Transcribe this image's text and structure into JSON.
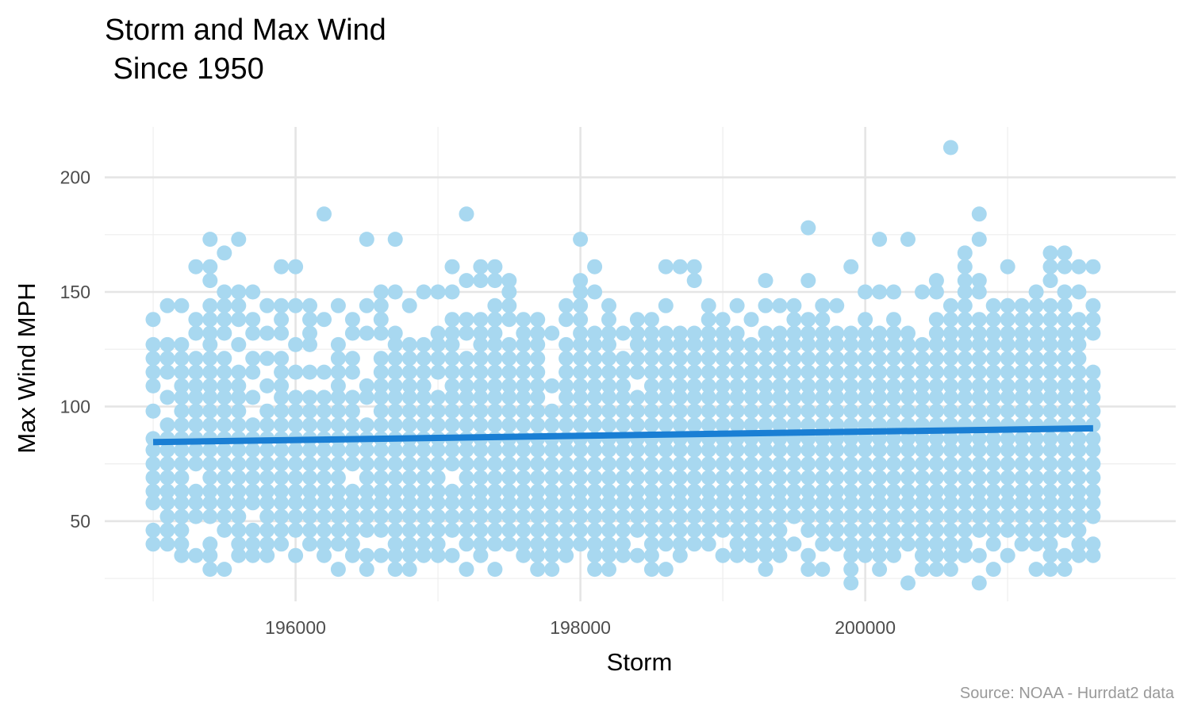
{
  "chart_data": {
    "type": "scatter",
    "title_line1": "Storm and Max Wind",
    "title_line2": " Since 1950",
    "xlabel": "Storm",
    "ylabel": "Max Wind MPH",
    "caption": "Source: NOAA - Hurrdat2 data",
    "xlim": [
      194660,
      202180
    ],
    "ylim": [
      15,
      222
    ],
    "x_ticks": [
      196000,
      198000,
      200000
    ],
    "x_tick_labels": [
      "196000",
      "198000",
      "200000"
    ],
    "x_minor_ticks": [
      195000,
      197000,
      199000,
      201000
    ],
    "y_ticks": [
      50,
      100,
      150,
      200
    ],
    "y_tick_labels": [
      "50",
      "100",
      "150",
      "200"
    ],
    "y_minor_ticks": [
      25,
      75,
      125,
      175
    ],
    "grid": true,
    "point_color": "#a8d8f0",
    "trend_color": "#1a7fd4",
    "trend_line": {
      "x": [
        195000,
        201600
      ],
      "y": [
        84.5,
        90.5
      ]
    },
    "x_start": 195000,
    "x_step": 100,
    "columns": [
      [
        40,
        46,
        58,
        63,
        69,
        75,
        81,
        86,
        98,
        109,
        115,
        121,
        127,
        138
      ],
      [
        40,
        46,
        52,
        58,
        63,
        69,
        75,
        81,
        86,
        92,
        104,
        115,
        121,
        127,
        144
      ],
      [
        35,
        40,
        46,
        52,
        58,
        63,
        69,
        75,
        81,
        86,
        92,
        98,
        104,
        109,
        115,
        121,
        127,
        144
      ],
      [
        35,
        52,
        58,
        63,
        75,
        81,
        86,
        92,
        98,
        104,
        109,
        115,
        121,
        132,
        138,
        161
      ],
      [
        29,
        35,
        40,
        52,
        58,
        63,
        69,
        75,
        81,
        86,
        92,
        98,
        104,
        109,
        115,
        121,
        127,
        132,
        138,
        144,
        155,
        161,
        173
      ],
      [
        29,
        46,
        52,
        58,
        63,
        69,
        75,
        81,
        86,
        92,
        98,
        104,
        109,
        115,
        121,
        132,
        138,
        144,
        150,
        167
      ],
      [
        35,
        40,
        46,
        52,
        58,
        63,
        69,
        75,
        81,
        86,
        92,
        98,
        104,
        109,
        115,
        127,
        138,
        144,
        150,
        173
      ],
      [
        35,
        40,
        46,
        58,
        63,
        69,
        75,
        81,
        86,
        92,
        104,
        115,
        121,
        132,
        138,
        150
      ],
      [
        35,
        40,
        46,
        52,
        58,
        63,
        69,
        75,
        81,
        86,
        92,
        98,
        109,
        121,
        132,
        144
      ],
      [
        40,
        46,
        52,
        58,
        63,
        69,
        75,
        81,
        86,
        92,
        98,
        104,
        109,
        115,
        121,
        132,
        138,
        144,
        161
      ],
      [
        35,
        46,
        52,
        58,
        63,
        69,
        75,
        81,
        86,
        92,
        98,
        104,
        115,
        127,
        144,
        161
      ],
      [
        40,
        46,
        52,
        58,
        63,
        69,
        75,
        81,
        86,
        92,
        98,
        104,
        115,
        127,
        132,
        138,
        144
      ],
      [
        35,
        40,
        46,
        52,
        58,
        63,
        69,
        75,
        81,
        86,
        92,
        98,
        104,
        115,
        138,
        184
      ],
      [
        29,
        40,
        46,
        52,
        58,
        63,
        69,
        75,
        81,
        86,
        92,
        98,
        104,
        109,
        115,
        121,
        127,
        144
      ],
      [
        35,
        40,
        46,
        52,
        58,
        63,
        75,
        81,
        86,
        92,
        98,
        104,
        115,
        121,
        132,
        138
      ],
      [
        29,
        35,
        46,
        52,
        58,
        63,
        69,
        75,
        81,
        86,
        92,
        104,
        109,
        132,
        144,
        173
      ],
      [
        35,
        46,
        52,
        58,
        63,
        69,
        75,
        81,
        86,
        92,
        98,
        104,
        109,
        115,
        121,
        132,
        138,
        144,
        150
      ],
      [
        29,
        35,
        40,
        46,
        52,
        58,
        63,
        69,
        75,
        81,
        86,
        92,
        98,
        104,
        109,
        115,
        121,
        127,
        132,
        150,
        173
      ],
      [
        29,
        35,
        40,
        46,
        52,
        58,
        63,
        69,
        75,
        81,
        86,
        92,
        98,
        104,
        109,
        115,
        121,
        127,
        144
      ],
      [
        35,
        40,
        46,
        52,
        58,
        63,
        69,
        75,
        81,
        86,
        92,
        98,
        104,
        109,
        115,
        121,
        127,
        150
      ],
      [
        35,
        40,
        46,
        52,
        58,
        63,
        69,
        75,
        81,
        86,
        92,
        98,
        104,
        115,
        121,
        127,
        132,
        150
      ],
      [
        35,
        46,
        52,
        58,
        63,
        75,
        81,
        86,
        92,
        98,
        104,
        109,
        115,
        121,
        127,
        132,
        138,
        150,
        161
      ],
      [
        29,
        40,
        46,
        52,
        58,
        63,
        69,
        75,
        81,
        86,
        92,
        98,
        104,
        109,
        115,
        121,
        132,
        138,
        155,
        184
      ],
      [
        35,
        40,
        46,
        52,
        58,
        63,
        69,
        75,
        81,
        86,
        92,
        98,
        104,
        109,
        115,
        121,
        127,
        132,
        138,
        155,
        161
      ],
      [
        29,
        40,
        46,
        52,
        58,
        63,
        69,
        75,
        81,
        86,
        92,
        98,
        104,
        109,
        115,
        121,
        127,
        132,
        138,
        144,
        155,
        161
      ],
      [
        40,
        46,
        52,
        58,
        63,
        69,
        75,
        81,
        86,
        92,
        98,
        104,
        109,
        115,
        121,
        127,
        138,
        144,
        150,
        155
      ],
      [
        35,
        40,
        46,
        52,
        58,
        63,
        69,
        75,
        81,
        86,
        92,
        98,
        104,
        109,
        115,
        121,
        127,
        132,
        138
      ],
      [
        29,
        35,
        40,
        46,
        52,
        58,
        63,
        69,
        75,
        81,
        86,
        92,
        98,
        104,
        109,
        115,
        121,
        127,
        132,
        138
      ],
      [
        29,
        35,
        40,
        46,
        52,
        58,
        63,
        69,
        75,
        81,
        86,
        92,
        98,
        109,
        132
      ],
      [
        35,
        40,
        46,
        52,
        58,
        63,
        69,
        75,
        81,
        86,
        92,
        98,
        104,
        109,
        115,
        121,
        127,
        138,
        144
      ],
      [
        40,
        46,
        52,
        58,
        63,
        69,
        75,
        81,
        86,
        92,
        98,
        104,
        109,
        115,
        121,
        127,
        132,
        138,
        144,
        150,
        155,
        173
      ],
      [
        29,
        35,
        40,
        46,
        52,
        58,
        63,
        69,
        75,
        81,
        86,
        92,
        98,
        104,
        109,
        115,
        121,
        127,
        132,
        150,
        161
      ],
      [
        29,
        35,
        40,
        46,
        52,
        58,
        63,
        69,
        75,
        81,
        86,
        92,
        98,
        104,
        109,
        115,
        121,
        127,
        132,
        138,
        144
      ],
      [
        35,
        40,
        46,
        52,
        58,
        63,
        69,
        75,
        81,
        86,
        92,
        98,
        104,
        109,
        115,
        121,
        132
      ],
      [
        35,
        46,
        52,
        58,
        63,
        69,
        75,
        81,
        86,
        92,
        98,
        104,
        115,
        121,
        127,
        132,
        138
      ],
      [
        29,
        35,
        40,
        46,
        52,
        58,
        63,
        69,
        75,
        81,
        86,
        92,
        98,
        104,
        109,
        115,
        121,
        127,
        132,
        138
      ],
      [
        29,
        40,
        46,
        52,
        58,
        63,
        69,
        75,
        81,
        86,
        92,
        98,
        104,
        109,
        115,
        121,
        127,
        132,
        144,
        161
      ],
      [
        35,
        40,
        46,
        52,
        58,
        63,
        69,
        75,
        81,
        86,
        92,
        98,
        104,
        109,
        115,
        121,
        127,
        132,
        161
      ],
      [
        40,
        46,
        52,
        58,
        63,
        69,
        75,
        81,
        86,
        92,
        98,
        104,
        109,
        115,
        121,
        127,
        132,
        155,
        161
      ],
      [
        40,
        46,
        52,
        58,
        63,
        69,
        75,
        81,
        86,
        92,
        98,
        104,
        109,
        115,
        121,
        127,
        132,
        138,
        144
      ],
      [
        35,
        46,
        52,
        58,
        63,
        69,
        75,
        81,
        86,
        92,
        98,
        104,
        109,
        115,
        121,
        127,
        132,
        138
      ],
      [
        35,
        40,
        46,
        52,
        58,
        63,
        69,
        75,
        81,
        86,
        92,
        98,
        104,
        109,
        115,
        121,
        127,
        132,
        144
      ],
      [
        35,
        40,
        46,
        52,
        58,
        63,
        69,
        75,
        81,
        86,
        92,
        98,
        104,
        109,
        115,
        121,
        127,
        138
      ],
      [
        29,
        35,
        40,
        46,
        52,
        58,
        63,
        69,
        75,
        81,
        86,
        92,
        98,
        104,
        109,
        115,
        121,
        127,
        132,
        144,
        155
      ],
      [
        35,
        40,
        46,
        52,
        58,
        63,
        69,
        75,
        81,
        86,
        92,
        98,
        104,
        109,
        115,
        121,
        127,
        132,
        144
      ],
      [
        40,
        52,
        58,
        63,
        69,
        75,
        81,
        86,
        92,
        98,
        104,
        109,
        115,
        121,
        127,
        132,
        138,
        144
      ],
      [
        29,
        35,
        46,
        52,
        58,
        63,
        69,
        75,
        81,
        86,
        92,
        98,
        104,
        109,
        115,
        121,
        127,
        132,
        138,
        155,
        178
      ],
      [
        29,
        40,
        46,
        52,
        58,
        63,
        69,
        75,
        81,
        86,
        92,
        98,
        104,
        109,
        115,
        121,
        127,
        132,
        138,
        144
      ],
      [
        40,
        46,
        52,
        58,
        63,
        69,
        75,
        81,
        86,
        92,
        98,
        104,
        109,
        115,
        121,
        127,
        132,
        144
      ],
      [
        23,
        29,
        35,
        40,
        46,
        52,
        58,
        63,
        69,
        75,
        81,
        86,
        92,
        98,
        104,
        109,
        115,
        121,
        127,
        132,
        161
      ],
      [
        35,
        40,
        46,
        52,
        58,
        63,
        69,
        75,
        81,
        86,
        92,
        98,
        104,
        109,
        115,
        121,
        127,
        132,
        138,
        150
      ],
      [
        29,
        35,
        40,
        46,
        52,
        58,
        63,
        69,
        75,
        81,
        86,
        92,
        98,
        104,
        109,
        115,
        121,
        127,
        132,
        150,
        173
      ],
      [
        35,
        40,
        46,
        52,
        58,
        63,
        69,
        75,
        81,
        86,
        92,
        98,
        104,
        109,
        115,
        121,
        127,
        132,
        138,
        150
      ],
      [
        23,
        40,
        46,
        52,
        58,
        63,
        69,
        75,
        81,
        86,
        92,
        98,
        104,
        109,
        115,
        121,
        127,
        132,
        173
      ],
      [
        29,
        35,
        40,
        46,
        52,
        58,
        63,
        69,
        75,
        81,
        86,
        92,
        98,
        104,
        109,
        115,
        121,
        127,
        150
      ],
      [
        29,
        35,
        40,
        46,
        52,
        58,
        63,
        69,
        75,
        81,
        86,
        92,
        98,
        104,
        109,
        115,
        121,
        127,
        132,
        138,
        150,
        155
      ],
      [
        29,
        35,
        40,
        46,
        52,
        58,
        63,
        69,
        75,
        81,
        86,
        92,
        98,
        104,
        109,
        115,
        121,
        127,
        132,
        138,
        144,
        213
      ],
      [
        35,
        40,
        46,
        52,
        58,
        63,
        69,
        75,
        81,
        86,
        92,
        98,
        104,
        109,
        115,
        121,
        127,
        132,
        138,
        144,
        150,
        155,
        161,
        167
      ],
      [
        23,
        35,
        46,
        52,
        58,
        63,
        69,
        75,
        81,
        86,
        92,
        98,
        104,
        109,
        115,
        121,
        127,
        132,
        138,
        150,
        155,
        173,
        184
      ],
      [
        29,
        40,
        46,
        52,
        58,
        63,
        69,
        75,
        81,
        86,
        92,
        98,
        104,
        109,
        115,
        121,
        127,
        132,
        138,
        144
      ],
      [
        35,
        46,
        52,
        58,
        63,
        69,
        75,
        81,
        86,
        92,
        98,
        104,
        109,
        115,
        121,
        127,
        132,
        138,
        144,
        161
      ],
      [
        40,
        46,
        52,
        58,
        63,
        69,
        75,
        81,
        86,
        92,
        98,
        104,
        109,
        115,
        121,
        127,
        132,
        138,
        144
      ],
      [
        29,
        40,
        46,
        52,
        58,
        63,
        69,
        75,
        81,
        86,
        92,
        98,
        104,
        109,
        115,
        121,
        127,
        132,
        138,
        144,
        150
      ],
      [
        29,
        35,
        40,
        46,
        52,
        58,
        63,
        69,
        75,
        81,
        86,
        92,
        98,
        104,
        109,
        115,
        121,
        127,
        132,
        138,
        144,
        155,
        161,
        167
      ],
      [
        29,
        35,
        46,
        52,
        58,
        63,
        69,
        75,
        81,
        86,
        92,
        98,
        104,
        109,
        115,
        121,
        127,
        132,
        138,
        144,
        150,
        161,
        167
      ],
      [
        35,
        40,
        46,
        52,
        58,
        63,
        69,
        75,
        81,
        86,
        92,
        98,
        104,
        109,
        115,
        121,
        127,
        132,
        138,
        150,
        161
      ],
      [
        35,
        40,
        52,
        58,
        63,
        69,
        75,
        81,
        86,
        92,
        98,
        104,
        109,
        115,
        132,
        138,
        144,
        161
      ]
    ]
  }
}
